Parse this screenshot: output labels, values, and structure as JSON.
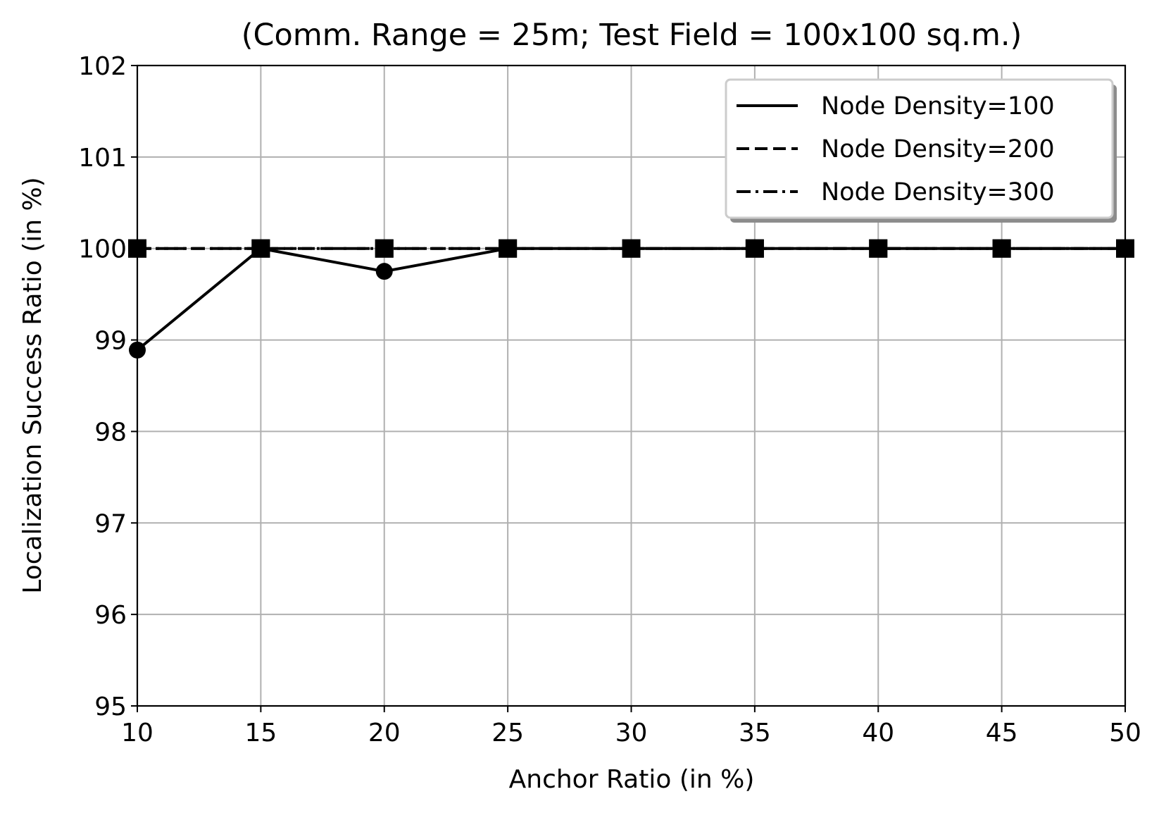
{
  "chart_data": {
    "type": "line",
    "title": "(Comm. Range = 25m; Test Field = 100x100 sq.m.)",
    "xlabel": "Anchor Ratio (in %)",
    "ylabel": "Localization Success Ratio (in %)",
    "xlim": [
      10,
      50
    ],
    "ylim": [
      95,
      102
    ],
    "xticks": [
      "10",
      "15",
      "20",
      "25",
      "30",
      "35",
      "40",
      "45",
      "50"
    ],
    "yticks": [
      "95",
      "96",
      "97",
      "98",
      "99",
      "100",
      "101",
      "102"
    ],
    "grid": true,
    "legend_position": "top-right",
    "x": [
      10,
      15,
      20,
      25,
      30,
      35,
      40,
      45,
      50
    ],
    "series": [
      {
        "name": "Node Density=100",
        "linestyle": "solid",
        "marker": "circle",
        "color": "#000000",
        "values": [
          98.89,
          100,
          99.75,
          100,
          100,
          100,
          100,
          100,
          100
        ]
      },
      {
        "name": "Node Density=200",
        "linestyle": "dashed",
        "marker": "square",
        "color": "#000000",
        "values": [
          100,
          100,
          100,
          100,
          100,
          100,
          100,
          100,
          100
        ]
      },
      {
        "name": "Node Density=300",
        "linestyle": "dashdot",
        "marker": "square",
        "color": "#000000",
        "values": [
          100,
          100,
          100,
          100,
          100,
          100,
          100,
          100,
          100
        ]
      }
    ]
  }
}
